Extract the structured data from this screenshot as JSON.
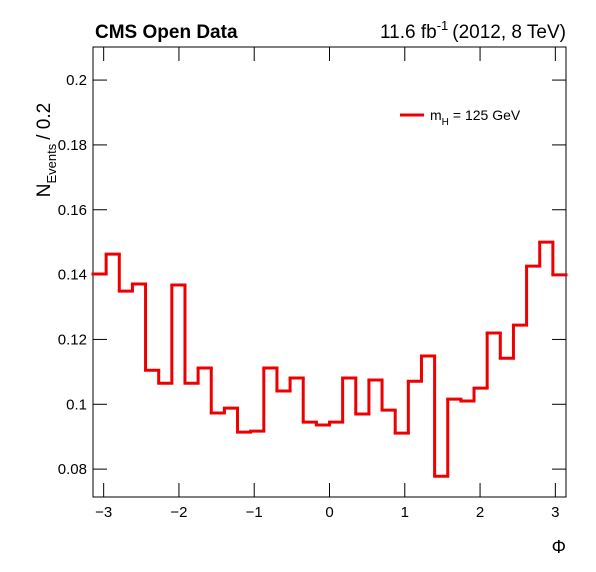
{
  "chart_data": {
    "type": "histogram",
    "title": "CMS Open Data",
    "lumi": {
      "base": "11.6 fb",
      "exp": "-1",
      "rest": "(2012, 8 TeV)"
    },
    "ylabel": {
      "base": "N",
      "sub": "Events",
      "rest": "/ 0.2"
    },
    "xlabel": "Φ",
    "bins": [
      -3.1416,
      -2.9671,
      -2.7925,
      -2.618,
      -2.4435,
      -2.2689,
      -2.0944,
      -1.9199,
      -1.7453,
      -1.5708,
      -1.3963,
      -1.2217,
      -1.0472,
      -0.8727,
      -0.6981,
      -0.5236,
      -0.3491,
      -0.1745,
      0,
      0.1745,
      0.3491,
      0.5236,
      0.6981,
      0.8727,
      1.0472,
      1.2217,
      1.3963,
      1.5708,
      1.7453,
      1.9199,
      2.0944,
      2.2689,
      2.4435,
      2.618,
      2.7925,
      2.9671,
      3.1416
    ],
    "series": [
      {
        "name": {
          "base": "m",
          "sub": "H",
          "rest": "= 125 GeV"
        },
        "color": "#ee0000",
        "values": [
          0.1402,
          0.1463,
          0.1349,
          0.1371,
          0.1105,
          0.1065,
          0.1368,
          0.1065,
          0.1112,
          0.0973,
          0.0988,
          0.0914,
          0.0917,
          0.1112,
          0.1041,
          0.1081,
          0.0945,
          0.0936,
          0.0945,
          0.1081,
          0.097,
          0.1075,
          0.0982,
          0.0911,
          0.1071,
          0.1149,
          0.0778,
          0.1016,
          0.101,
          0.105,
          0.122,
          0.1142,
          0.1244,
          0.1426,
          0.15,
          0.1399
        ]
      }
    ],
    "xlim": [
      -3.1416,
      3.1416
    ],
    "ylim": [
      0.0714,
      0.2102
    ],
    "xticks": [
      {
        "value": -3,
        "label": "−3"
      },
      {
        "value": -2,
        "label": "−2"
      },
      {
        "value": -1,
        "label": "−1"
      },
      0,
      1,
      2,
      3
    ],
    "yticks": [
      0.08,
      0.1,
      0.12,
      0.14,
      0.16,
      0.18,
      0.2
    ],
    "legend": "upper right"
  }
}
